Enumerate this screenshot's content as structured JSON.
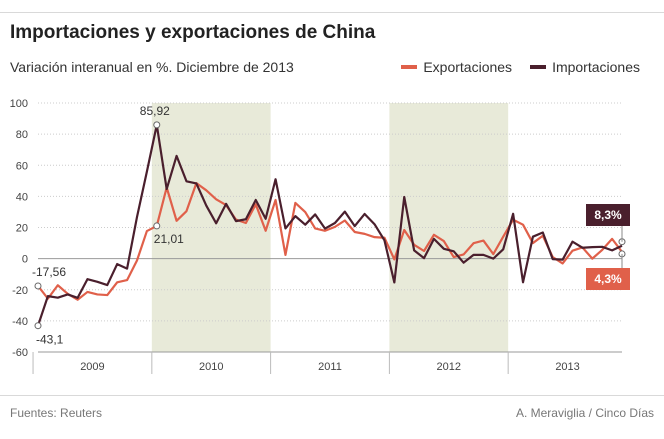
{
  "header": {
    "title": "Importaciones y exportaciones de China",
    "subtitle": "Variación interanual en %. Diciembre de 2013"
  },
  "footer": {
    "source": "Fuentes: Reuters",
    "credit": "A. Meraviglia / Cinco Días"
  },
  "colors": {
    "exports": "#e0604a",
    "imports": "#4a1f2d",
    "shade": "#e8ead9",
    "grid": "#cccccc"
  },
  "chart_data": {
    "type": "line",
    "ylim": [
      -60,
      100
    ],
    "yticks": [
      100,
      80,
      60,
      40,
      20,
      0,
      -20,
      -40,
      -60
    ],
    "year_labels": [
      "2009",
      "2010",
      "2011",
      "2012",
      "2013"
    ],
    "x_range": [
      "2009-01",
      "2013-12"
    ],
    "shaded_periods": [
      [
        "2010-01",
        "2010-12"
      ],
      [
        "2012-01",
        "2012-12"
      ]
    ],
    "legend_position": "top-right",
    "series": [
      {
        "name": "Exportaciones",
        "key": "exports",
        "x": [
          "2009-01",
          "2009-02",
          "2009-03",
          "2009-04",
          "2009-05",
          "2009-06",
          "2009-07",
          "2009-08",
          "2009-09",
          "2009-10",
          "2009-11",
          "2009-12",
          "2010-01",
          "2010-02",
          "2010-03",
          "2010-04",
          "2010-05",
          "2010-06",
          "2010-07",
          "2010-08",
          "2010-09",
          "2010-10",
          "2010-11",
          "2010-12",
          "2011-01",
          "2011-02",
          "2011-03",
          "2011-04",
          "2011-05",
          "2011-06",
          "2011-07",
          "2011-08",
          "2011-09",
          "2011-10",
          "2011-11",
          "2011-12",
          "2012-01",
          "2012-02",
          "2012-03",
          "2012-04",
          "2012-05",
          "2012-06",
          "2012-07",
          "2012-08",
          "2012-09",
          "2012-10",
          "2012-11",
          "2012-12",
          "2013-01",
          "2013-02",
          "2013-03",
          "2013-04",
          "2013-05",
          "2013-06",
          "2013-07",
          "2013-08",
          "2013-09",
          "2013-10",
          "2013-11",
          "2013-12"
        ],
        "values": [
          -17.56,
          -25.7,
          -17.1,
          -22.6,
          -26.4,
          -21.4,
          -23,
          -23.4,
          -15.2,
          -13.8,
          -1.2,
          17.7,
          21.01,
          45.7,
          24.3,
          30.5,
          48.5,
          43.9,
          38.1,
          34.4,
          25.1,
          22.9,
          34.9,
          17.9,
          37.7,
          2.4,
          35.8,
          29.9,
          19.4,
          17.9,
          20.4,
          24.5,
          17.1,
          15.9,
          13.8,
          13.4,
          -0.5,
          18.4,
          8.9,
          4.9,
          15.3,
          11.3,
          1,
          2.7,
          9.9,
          11.6,
          2.9,
          14.1,
          25,
          21.8,
          10,
          14.7,
          1,
          -3.1,
          5.1,
          7.2,
          0,
          5.6,
          12.7,
          4.3
        ],
        "annotations": [
          {
            "x": "2009-01",
            "value": -17.56,
            "label": "-17,56"
          },
          {
            "x": "2010-01",
            "value": 21.01,
            "label": "21,01"
          },
          {
            "x": "2013-12",
            "value": 4.3,
            "label": "4,3%"
          }
        ]
      },
      {
        "name": "Importaciones",
        "key": "imports",
        "x": [
          "2009-01",
          "2009-02",
          "2009-03",
          "2009-04",
          "2009-05",
          "2009-06",
          "2009-07",
          "2009-08",
          "2009-09",
          "2009-10",
          "2009-11",
          "2009-12",
          "2010-01",
          "2010-02",
          "2010-03",
          "2010-04",
          "2010-05",
          "2010-06",
          "2010-07",
          "2010-08",
          "2010-09",
          "2010-10",
          "2010-11",
          "2010-12",
          "2011-01",
          "2011-02",
          "2011-03",
          "2011-04",
          "2011-05",
          "2011-06",
          "2011-07",
          "2011-08",
          "2011-09",
          "2011-10",
          "2011-11",
          "2011-12",
          "2012-01",
          "2012-02",
          "2012-03",
          "2012-04",
          "2012-05",
          "2012-06",
          "2012-07",
          "2012-08",
          "2012-09",
          "2012-10",
          "2012-11",
          "2012-12",
          "2013-01",
          "2013-02",
          "2013-03",
          "2013-04",
          "2013-05",
          "2013-06",
          "2013-07",
          "2013-08",
          "2013-09",
          "2013-10",
          "2013-11",
          "2013-12"
        ],
        "values": [
          -43.1,
          -24.1,
          -25.1,
          -23,
          -25.2,
          -13.2,
          -14.9,
          -17,
          -3.5,
          -6.4,
          26.7,
          55.9,
          85.92,
          44.7,
          66,
          49.7,
          48.3,
          34.1,
          22.7,
          35.2,
          24.1,
          25.3,
          37.7,
          25.6,
          51,
          19.4,
          27.3,
          21.8,
          28.4,
          19.3,
          22.9,
          30.2,
          20.9,
          28.7,
          22.1,
          11.8,
          -15.3,
          39.6,
          5.3,
          0.3,
          12.7,
          6.3,
          4.7,
          -2.6,
          2.4,
          2.4,
          0,
          6,
          28.8,
          -15.2,
          14.1,
          16.8,
          -0.3,
          -0.7,
          10.9,
          7,
          7.4,
          7.6,
          5.3,
          8.3
        ],
        "annotations": [
          {
            "x": "2009-01",
            "value": -43.1,
            "label": "-43,1"
          },
          {
            "x": "2010-01",
            "value": 85.92,
            "label": "85,92"
          },
          {
            "x": "2013-12",
            "value": 8.3,
            "label": "8,3%"
          }
        ]
      }
    ]
  }
}
